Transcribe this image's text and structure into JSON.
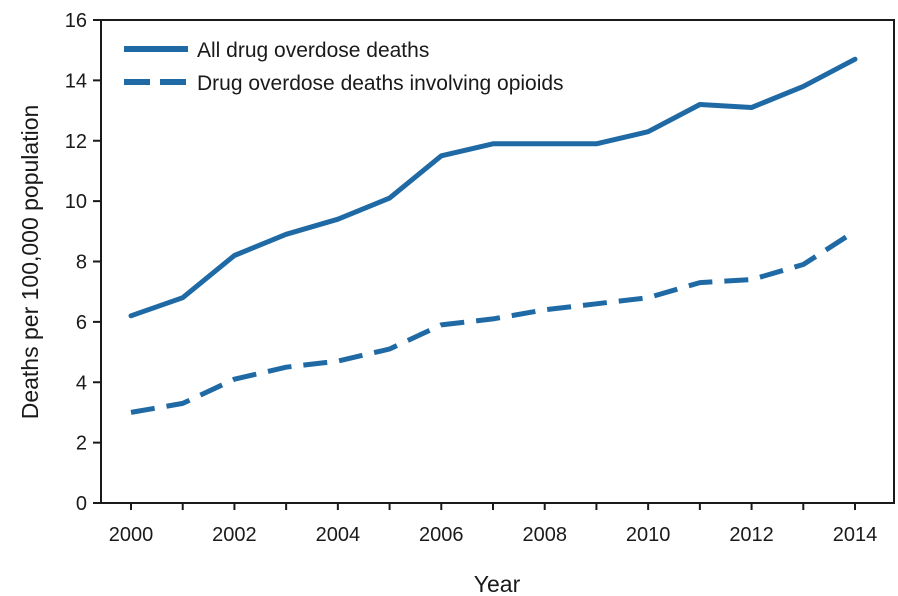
{
  "chart_data": {
    "type": "line",
    "xlabel": "Year",
    "ylabel": "Deaths per 100,000 population",
    "x": [
      2000,
      2001,
      2002,
      2003,
      2004,
      2005,
      2006,
      2007,
      2008,
      2009,
      2010,
      2011,
      2012,
      2013,
      2014
    ],
    "xlim": [
      2000,
      2014
    ],
    "ylim": [
      0,
      16
    ],
    "x_ticks": [
      "2000",
      "2002",
      "2004",
      "2006",
      "2008",
      "2010",
      "2012",
      "2014"
    ],
    "y_ticks": [
      "0",
      "2",
      "4",
      "6",
      "8",
      "10",
      "12",
      "14",
      "16"
    ],
    "grid": false,
    "legend_position": "top-left",
    "series": [
      {
        "name": "All drug overdose deaths",
        "style": "solid",
        "color": "#1f6aa5",
        "values": [
          6.2,
          6.8,
          8.2,
          8.9,
          9.4,
          10.1,
          11.5,
          11.9,
          11.9,
          11.9,
          12.3,
          13.2,
          13.1,
          13.8,
          14.7
        ]
      },
      {
        "name": "Drug overdose deaths involving opioids",
        "style": "dashed",
        "color": "#1f6aa5",
        "values": [
          3.0,
          3.3,
          4.1,
          4.5,
          4.7,
          5.1,
          5.9,
          6.1,
          6.4,
          6.6,
          6.8,
          7.3,
          7.4,
          7.9,
          9.0
        ]
      }
    ]
  }
}
